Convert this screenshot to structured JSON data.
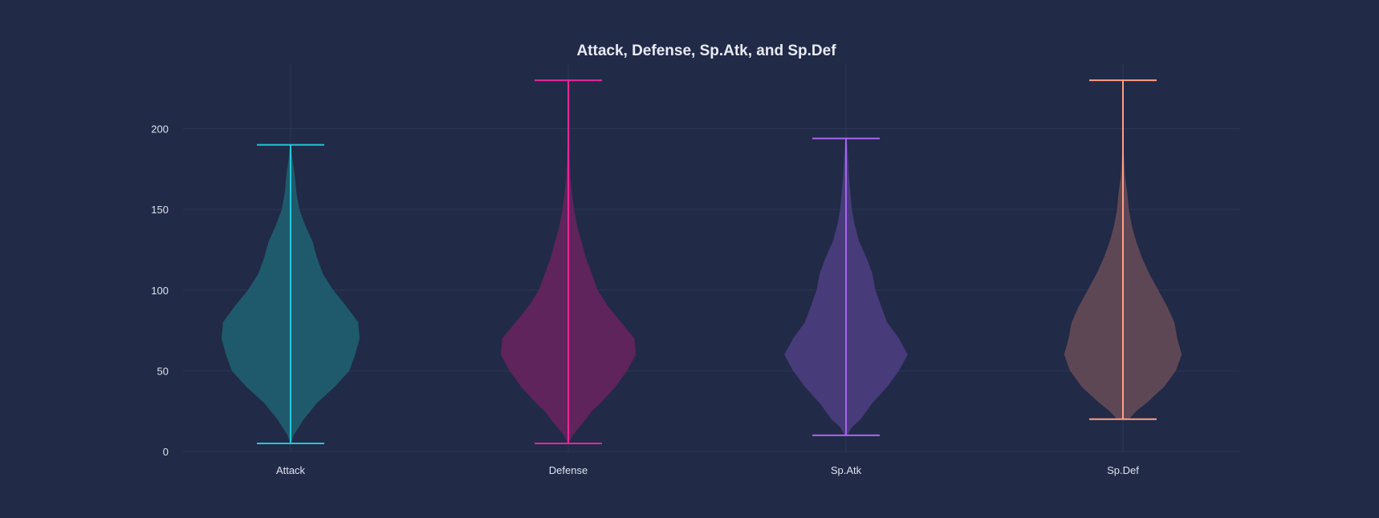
{
  "chart_data": {
    "type": "violin",
    "title": "Attack, Defense, Sp.Atk, and Sp.Def",
    "xlabel": "",
    "ylabel": "",
    "ylim": [
      0,
      240
    ],
    "yticks": [
      0,
      50,
      100,
      150,
      200
    ],
    "grid": true,
    "legend": "none",
    "background": "#212a47",
    "categories": [
      "Attack",
      "Defense",
      "Sp.Atk",
      "Sp.Def"
    ],
    "series": [
      {
        "category": "Attack",
        "min": 5,
        "max": 190,
        "fill": "#1f5a6c",
        "stroke": "#22c7d6",
        "density": [
          [
            5,
            0.4
          ],
          [
            10,
            2
          ],
          [
            20,
            9
          ],
          [
            30,
            18
          ],
          [
            40,
            30
          ],
          [
            50,
            40
          ],
          [
            60,
            44
          ],
          [
            70,
            47
          ],
          [
            80,
            46
          ],
          [
            90,
            38
          ],
          [
            100,
            29
          ],
          [
            110,
            22
          ],
          [
            120,
            18
          ],
          [
            130,
            15
          ],
          [
            140,
            10
          ],
          [
            150,
            6
          ],
          [
            160,
            4
          ],
          [
            170,
            3
          ],
          [
            180,
            1.5
          ],
          [
            190,
            0.4
          ]
        ]
      },
      {
        "category": "Defense",
        "min": 5,
        "max": 230,
        "fill": "#5e245b",
        "stroke": "#e8259a",
        "density": [
          [
            5,
            0.4
          ],
          [
            10,
            3
          ],
          [
            20,
            12
          ],
          [
            25,
            16
          ],
          [
            30,
            22
          ],
          [
            40,
            32
          ],
          [
            50,
            40
          ],
          [
            60,
            46
          ],
          [
            70,
            45
          ],
          [
            80,
            36
          ],
          [
            90,
            27
          ],
          [
            100,
            20
          ],
          [
            110,
            16
          ],
          [
            120,
            12
          ],
          [
            130,
            9
          ],
          [
            140,
            6
          ],
          [
            150,
            4
          ],
          [
            160,
            2.5
          ],
          [
            170,
            1.5
          ],
          [
            180,
            1
          ],
          [
            190,
            0.6
          ],
          [
            200,
            0.4
          ],
          [
            210,
            0.3
          ],
          [
            220,
            0.2
          ],
          [
            230,
            0.1
          ]
        ]
      },
      {
        "category": "Sp.Atk",
        "min": 10,
        "max": 194,
        "fill": "#473b7a",
        "stroke": "#a866f0",
        "density": [
          [
            10,
            1
          ],
          [
            15,
            4
          ],
          [
            20,
            10
          ],
          [
            30,
            18
          ],
          [
            40,
            28
          ],
          [
            50,
            36
          ],
          [
            60,
            42
          ],
          [
            70,
            36
          ],
          [
            80,
            28
          ],
          [
            90,
            24
          ],
          [
            100,
            20
          ],
          [
            110,
            18
          ],
          [
            120,
            14
          ],
          [
            130,
            9
          ],
          [
            140,
            6
          ],
          [
            150,
            4
          ],
          [
            160,
            3
          ],
          [
            170,
            2
          ],
          [
            180,
            1.5
          ],
          [
            190,
            0.8
          ],
          [
            194,
            0.3
          ]
        ]
      },
      {
        "category": "Sp.Def",
        "min": 20,
        "max": 230,
        "fill": "#5e4755",
        "stroke": "#ff9f85",
        "density": [
          [
            20,
            4
          ],
          [
            25,
            9
          ],
          [
            30,
            16
          ],
          [
            40,
            28
          ],
          [
            50,
            36
          ],
          [
            60,
            40
          ],
          [
            70,
            37
          ],
          [
            80,
            35
          ],
          [
            90,
            30
          ],
          [
            100,
            24
          ],
          [
            110,
            18
          ],
          [
            120,
            13
          ],
          [
            130,
            9
          ],
          [
            140,
            6
          ],
          [
            150,
            4
          ],
          [
            160,
            3
          ],
          [
            170,
            1.5
          ],
          [
            180,
            0.8
          ],
          [
            190,
            0.4
          ],
          [
            200,
            0.2
          ],
          [
            210,
            0.1
          ],
          [
            220,
            0.1
          ],
          [
            230,
            0.05
          ]
        ]
      }
    ]
  }
}
